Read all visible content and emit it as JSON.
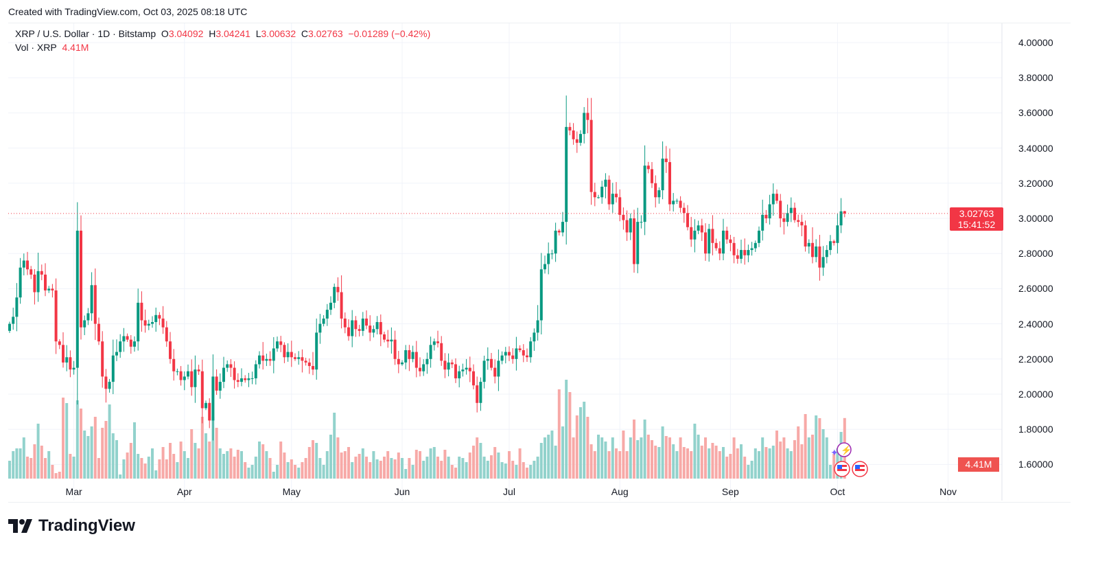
{
  "header": {
    "created": "Created with TradingView.com, Oct 03, 2025 08:18 UTC"
  },
  "legend": {
    "symbol": "XRP / U.S. Dollar · 1D · Bitstamp",
    "o_label": "O",
    "o": "3.04092",
    "h_label": "H",
    "h": "3.04241",
    "l_label": "L",
    "l": "3.00632",
    "c_label": "C",
    "c": "3.02763",
    "change": "−0.01289 (−0.42%)",
    "vol_label": "Vol · XRP",
    "vol": "4.41M"
  },
  "price_badge": {
    "price": "3.02763",
    "countdown": "15:41:52"
  },
  "vol_badge": "4.41M",
  "logo": {
    "text": "TradingView"
  },
  "colors": {
    "up": "#089981",
    "down": "#f23645",
    "up_vol": "#92d2cc",
    "down_vol": "#f7a9a7",
    "grid": "#f0f3fa"
  },
  "chart_data": {
    "type": "candlestick",
    "title": "XRP / U.S. Dollar · 1D · Bitstamp",
    "start_date": "2025-02-11",
    "ylim": [
      1.6,
      4.0
    ],
    "y_ticks": [
      "4.00000",
      "3.80000",
      "3.60000",
      "3.40000",
      "3.20000",
      "3.00000",
      "2.80000",
      "2.60000",
      "2.40000",
      "2.20000",
      "2.00000",
      "1.80000",
      "1.60000"
    ],
    "y_tick_values": [
      4.0,
      3.8,
      3.6,
      3.4,
      3.2,
      3.0,
      2.8,
      2.6,
      2.4,
      2.2,
      2.0,
      1.8,
      1.6
    ],
    "x_ticks": [
      {
        "label": "Mar",
        "date": "2025-03-01"
      },
      {
        "label": "Apr",
        "date": "2025-04-01"
      },
      {
        "label": "May",
        "date": "2025-05-01"
      },
      {
        "label": "Jun",
        "date": "2025-06-01"
      },
      {
        "label": "Jul",
        "date": "2025-07-01"
      },
      {
        "label": "Aug",
        "date": "2025-08-01"
      },
      {
        "label": "Sep",
        "date": "2025-09-01"
      },
      {
        "label": "Oct",
        "date": "2025-10-01"
      },
      {
        "label": "Nov",
        "date": "2025-11-01"
      }
    ],
    "first_open": 2.36,
    "close": [
      2.4,
      2.44,
      2.55,
      2.72,
      2.76,
      2.71,
      2.68,
      2.58,
      2.7,
      2.68,
      2.59,
      2.6,
      2.59,
      2.3,
      2.28,
      2.18,
      2.21,
      2.14,
      2.15,
      2.93,
      2.38,
      2.42,
      2.46,
      2.62,
      2.4,
      2.3,
      2.1,
      2.03,
      2.07,
      2.22,
      2.24,
      2.3,
      2.33,
      2.31,
      2.27,
      2.3,
      2.52,
      2.42,
      2.39,
      2.4,
      2.41,
      2.45,
      2.43,
      2.38,
      2.3,
      2.2,
      2.13,
      2.13,
      2.08,
      2.1,
      2.13,
      2.04,
      2.14,
      2.13,
      1.92,
      1.95,
      1.85,
      2.1,
      2.02,
      2.07,
      2.15,
      2.17,
      2.15,
      2.08,
      2.07,
      2.09,
      2.08,
      2.09,
      2.09,
      2.17,
      2.22,
      2.19,
      2.2,
      2.19,
      2.26,
      2.3,
      2.28,
      2.21,
      2.24,
      2.21,
      2.2,
      2.21,
      2.19,
      2.18,
      2.16,
      2.14,
      2.35,
      2.4,
      2.43,
      2.48,
      2.52,
      2.61,
      2.58,
      2.43,
      2.38,
      2.33,
      2.42,
      2.37,
      2.36,
      2.43,
      2.39,
      2.35,
      2.37,
      2.41,
      2.34,
      2.31,
      2.3,
      2.31,
      2.2,
      2.17,
      2.18,
      2.25,
      2.2,
      2.24,
      2.15,
      2.13,
      2.17,
      2.2,
      2.28,
      2.3,
      2.29,
      2.19,
      2.14,
      2.18,
      2.17,
      2.09,
      2.13,
      2.14,
      2.15,
      2.13,
      2.05,
      1.95,
      2.07,
      2.19,
      2.2,
      2.15,
      2.1,
      2.19,
      2.22,
      2.24,
      2.22,
      2.2,
      2.26,
      2.25,
      2.22,
      2.21,
      2.3,
      2.35,
      2.42,
      2.71,
      2.74,
      2.8,
      2.8,
      2.93,
      2.92,
      2.98,
      3.52,
      3.5,
      3.45,
      3.43,
      3.48,
      3.6,
      3.56,
      3.15,
      3.12,
      3.12,
      3.18,
      3.22,
      3.08,
      3.14,
      3.12,
      3.02,
      2.99,
      2.92,
      3.0,
      2.74,
      2.98,
      2.98,
      3.3,
      3.28,
      3.2,
      3.12,
      3.16,
      3.34,
      3.32,
      3.08,
      3.1,
      3.1,
      3.06,
      3.03,
      2.95,
      2.88,
      2.93,
      2.96,
      2.92,
      2.8,
      2.94,
      2.86,
      2.83,
      2.8,
      2.93,
      2.88,
      2.86,
      2.79,
      2.77,
      2.82,
      2.79,
      2.82,
      2.83,
      2.86,
      2.93,
      3.02,
      3.0,
      3.08,
      3.14,
      3.1,
      3.0,
      2.98,
      3.03,
      3.06,
      2.99,
      2.98,
      2.96,
      2.84,
      2.86,
      2.78,
      2.84,
      2.72,
      2.78,
      2.82,
      2.87,
      2.86,
      2.96,
      3.04,
      3.02763
    ],
    "last_candle": {
      "open": 3.04092,
      "high": 3.04241,
      "low": 3.00632,
      "close": 3.02763
    },
    "volume_m": [
      1.3,
      2.0,
      2.2,
      2.2,
      3.0,
      1.6,
      1.5,
      2.5,
      4.0,
      2.4,
      1.5,
      2.0,
      1.0,
      0.4,
      0.5,
      5.9,
      5.5,
      1.8,
      1.6,
      5.7,
      5.1,
      3.5,
      3.1,
      3.8,
      4.5,
      1.5,
      3.7,
      4.2,
      5.4,
      3.3,
      2.8,
      0.3,
      1.4,
      1.9,
      2.6,
      4.1,
      1.8,
      1.5,
      1.1,
      1.6,
      2.2,
      0.6,
      1.4,
      2.3,
      1.4,
      2.6,
      1.8,
      1.2,
      2.7,
      2.0,
      1.5,
      3.6,
      2.6,
      2.2,
      4.5,
      3.3,
      2.7,
      4.5,
      3.7,
      2.2,
      1.8,
      2.0,
      2.2,
      1.6,
      2.1,
      2.0,
      1.2,
      0.8,
      1.0,
      1.6,
      2.7,
      2.5,
      2.0,
      1.5,
      0.5,
      1.0,
      2.7,
      1.9,
      1.2,
      1.4,
      1.0,
      0.8,
      1.2,
      1.5,
      2.3,
      2.8,
      2.6,
      1.5,
      1.0,
      2.0,
      3.2,
      4.8,
      3.0,
      1.9,
      2.0,
      2.3,
      1.2,
      1.6,
      1.8,
      2.2,
      1.6,
      1.2,
      2.0,
      1.4,
      1.3,
      1.6,
      2.0,
      1.5,
      1.4,
      1.9,
      1.5,
      0.7,
      1.5,
      1.0,
      2.1,
      2.0,
      1.3,
      1.6,
      2.2,
      2.3,
      1.6,
      1.3,
      2.1,
      1.6,
      1.0,
      0.8,
      1.6,
      1.5,
      1.2,
      1.9,
      2.4,
      3.0,
      2.6,
      1.6,
      1.3,
      1.7,
      2.3,
      1.9,
      1.2,
      1.1,
      2.0,
      1.3,
      1.0,
      2.2,
      1.2,
      0.8,
      1.0,
      1.3,
      1.6,
      2.6,
      3.0,
      3.2,
      3.5,
      2.4,
      6.5,
      3.8,
      7.2,
      6.3,
      3.0,
      4.6,
      5.2,
      5.6,
      4.5,
      2.5,
      2.0,
      3.2,
      3.0,
      2.7,
      2.0,
      3.0,
      2.2,
      2.0,
      3.5,
      2.0,
      3.0,
      4.3,
      2.8,
      3.0,
      4.3,
      3.2,
      2.8,
      2.4,
      2.3,
      3.8,
      3.1,
      3.0,
      2.5,
      2.0,
      3.0,
      2.3,
      2.2,
      2.0,
      4.0,
      3.2,
      2.4,
      3.0,
      2.2,
      2.6,
      2.4,
      2.0,
      2.3,
      1.6,
      1.8,
      3.0,
      2.2,
      2.5,
      1.6,
      1.0,
      1.3,
      2.2,
      2.0,
      3.0,
      2.3,
      2.2,
      2.4,
      3.5,
      2.7,
      3.0,
      2.2,
      2.0,
      2.8,
      3.8,
      2.5,
      4.7,
      3.0,
      3.2,
      4.6,
      4.4,
      3.6,
      3.0,
      1.0,
      1.8,
      2.2,
      3.4,
      4.41
    ],
    "current_price": 3.02763
  }
}
